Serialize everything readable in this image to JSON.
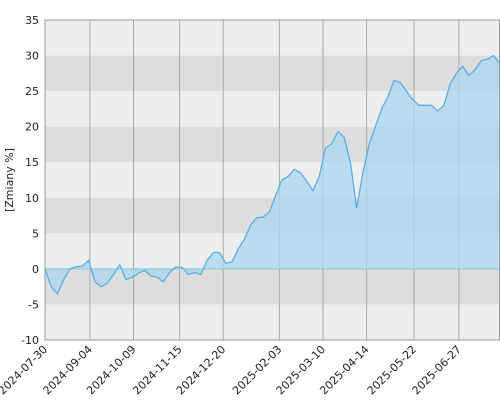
{
  "chart_data": {
    "type": "area",
    "y_label": "[Zmiany %]",
    "x": [
      "2024-07-30",
      "2024-08-04",
      "2024-08-09",
      "2024-08-14",
      "2024-08-19",
      "2024-08-24",
      "2024-08-29",
      "2024-09-03",
      "2024-09-08",
      "2024-09-13",
      "2024-09-18",
      "2024-09-23",
      "2024-09-28",
      "2024-10-03",
      "2024-10-08",
      "2024-10-13",
      "2024-10-18",
      "2024-10-23",
      "2024-10-28",
      "2024-11-02",
      "2024-11-07",
      "2024-11-12",
      "2024-11-17",
      "2024-11-22",
      "2024-11-27",
      "2024-12-02",
      "2024-12-07",
      "2024-12-12",
      "2024-12-17",
      "2024-12-22",
      "2024-12-27",
      "2025-01-01",
      "2025-01-06",
      "2025-01-11",
      "2025-01-16",
      "2025-01-21",
      "2025-01-26",
      "2025-01-31",
      "2025-02-05",
      "2025-02-10",
      "2025-02-15",
      "2025-02-20",
      "2025-02-25",
      "2025-03-02",
      "2025-03-07",
      "2025-03-12",
      "2025-03-17",
      "2025-03-22",
      "2025-03-27",
      "2025-04-01",
      "2025-04-06",
      "2025-04-11",
      "2025-04-16",
      "2025-04-21",
      "2025-04-26",
      "2025-05-01",
      "2025-05-06",
      "2025-05-11",
      "2025-05-16",
      "2025-05-21",
      "2025-05-26",
      "2025-05-31",
      "2025-06-05",
      "2025-06-10",
      "2025-06-15",
      "2025-06-20",
      "2025-06-25",
      "2025-06-30",
      "2025-07-05",
      "2025-07-10",
      "2025-07-15",
      "2025-07-20",
      "2025-07-25",
      "2025-07-29"
    ],
    "values": [
      0,
      -2.5,
      -3.5,
      -1.5,
      0,
      0.3,
      0.4,
      1.2,
      -1.8,
      -2.5,
      -2,
      -0.8,
      0.6,
      -1.5,
      -1.2,
      -0.6,
      -0.2,
      -1,
      -1.2,
      -1.8,
      -0.5,
      0.3,
      0.2,
      -0.8,
      -0.5,
      -0.8,
      1.2,
      2.3,
      2.3,
      0.8,
      1,
      2.8,
      4.2,
      6.2,
      7.2,
      7.3,
      8,
      10.3,
      12.5,
      13,
      14,
      13.5,
      12.3,
      11,
      13,
      17,
      17.6,
      19.3,
      18.5,
      15,
      8.5,
      13.5,
      17.5,
      20,
      22.5,
      24.2,
      26.5,
      26.2,
      25,
      23.8,
      23,
      23,
      23,
      22.2,
      23,
      26,
      27.5,
      28.5,
      27.2,
      28,
      29.3,
      29.5,
      30,
      29
    ],
    "color": "#5aaee8",
    "fill": "#a8d6ee",
    "xlim": [
      "2024-07-30",
      "2025-07-30"
    ],
    "xticks": [
      "2024-07-30",
      "2024-09-04",
      "2024-10-09",
      "2024-11-15",
      "2024-12-20",
      "2025-02-03",
      "2025-03-10",
      "2025-04-14",
      "2025-05-22",
      "2025-06-27"
    ],
    "ylim": [
      -10,
      35
    ],
    "yticks": [
      -10,
      -5,
      0,
      5,
      10,
      15,
      20,
      25,
      30,
      35
    ],
    "band_colors": [
      "#eeeeee",
      "#dddddd"
    ]
  }
}
